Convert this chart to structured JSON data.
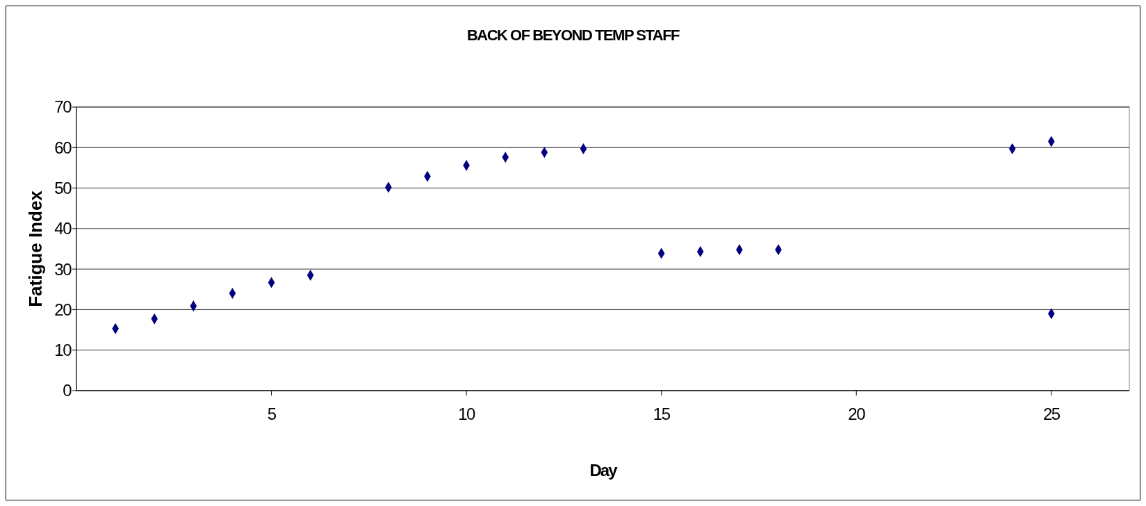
{
  "chart_data": {
    "type": "scatter",
    "title": "BACK OF BEYOND TEMP STAFF",
    "xlabel": "Day",
    "ylabel": "Fatigue Index",
    "x": [
      1,
      2,
      3,
      4,
      5,
      6,
      8,
      9,
      10,
      11,
      12,
      13,
      15,
      16,
      17,
      18,
      24,
      25,
      25
    ],
    "series": [
      {
        "color": "#000080",
        "values": [
          15.3,
          17.7,
          20.9,
          24.0,
          26.7,
          28.5,
          50.2,
          52.9,
          55.6,
          57.6,
          58.8,
          59.7,
          33.9,
          34.3,
          34.8,
          34.8,
          59.7,
          61.5,
          19.0
        ]
      }
    ],
    "xlim": [
      0,
      27
    ],
    "xticks": [
      5,
      10,
      15,
      20,
      25
    ],
    "ylim": [
      0,
      70
    ],
    "yticks": [
      0,
      10,
      20,
      30,
      40,
      50,
      60,
      70
    ],
    "grid": "y",
    "marker": "diamond"
  }
}
